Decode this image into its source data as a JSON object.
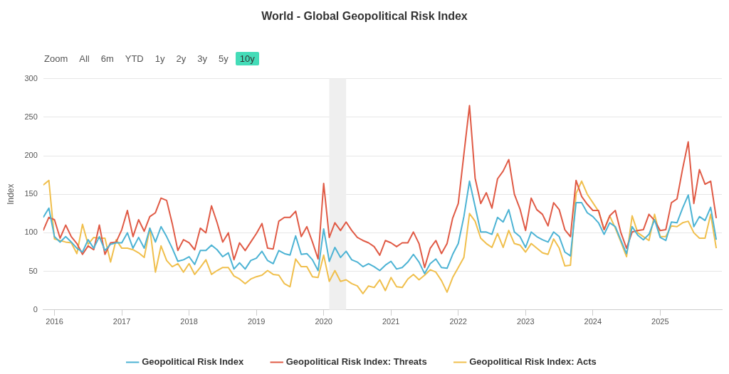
{
  "chart_data": {
    "type": "line",
    "title": "World - Global Geopolitical Risk Index",
    "ylabel": "Index",
    "annotations": [
      "Zoom",
      "All",
      "6m",
      "YTD",
      "1y",
      "2y",
      "3y",
      "5y",
      "10y"
    ],
    "x": [
      "2015-11",
      "2015-12",
      "2016-01",
      "2016-02",
      "2016-03",
      "2016-04",
      "2016-05",
      "2016-06",
      "2016-07",
      "2016-08",
      "2016-09",
      "2016-10",
      "2016-11",
      "2016-12",
      "2017-01",
      "2017-02",
      "2017-03",
      "2017-04",
      "2017-05",
      "2017-06",
      "2017-07",
      "2017-08",
      "2017-09",
      "2017-10",
      "2017-11",
      "2017-12",
      "2018-01",
      "2018-02",
      "2018-03",
      "2018-04",
      "2018-05",
      "2018-06",
      "2018-07",
      "2018-08",
      "2018-09",
      "2018-10",
      "2018-11",
      "2018-12",
      "2019-01",
      "2019-02",
      "2019-03",
      "2019-04",
      "2019-05",
      "2019-06",
      "2019-07",
      "2019-08",
      "2019-09",
      "2019-10",
      "2019-11",
      "2019-12",
      "2020-01",
      "2020-02",
      "2020-03",
      "2020-04",
      "2020-05",
      "2020-06",
      "2020-07",
      "2020-08",
      "2020-09",
      "2020-10",
      "2020-11",
      "2020-12",
      "2021-01",
      "2021-02",
      "2021-03",
      "2021-04",
      "2021-05",
      "2021-06",
      "2021-07",
      "2021-08",
      "2021-09",
      "2021-10",
      "2021-11",
      "2021-12",
      "2022-01",
      "2022-02",
      "2022-03",
      "2022-04",
      "2022-05",
      "2022-06",
      "2022-07",
      "2022-08",
      "2022-09",
      "2022-10",
      "2022-11",
      "2022-12",
      "2023-01",
      "2023-02",
      "2023-03",
      "2023-04",
      "2023-05",
      "2023-06",
      "2023-07",
      "2023-08",
      "2023-09",
      "2023-10",
      "2023-11",
      "2023-12",
      "2024-01",
      "2024-02",
      "2024-03",
      "2024-04",
      "2024-05",
      "2024-06",
      "2024-07",
      "2024-08",
      "2024-09",
      "2024-10",
      "2024-11",
      "2024-12",
      "2025-01",
      "2025-02",
      "2025-03",
      "2025-04",
      "2025-05",
      "2025-06",
      "2025-07",
      "2025-08",
      "2025-09",
      "2025-10",
      "2025-11"
    ],
    "xlim": [
      "2015-11",
      "2025-12"
    ],
    "xticks": [
      {
        "value": "2016",
        "label": "2016"
      },
      {
        "value": "2017",
        "label": "2017"
      },
      {
        "value": "2018",
        "label": "2018"
      },
      {
        "value": "2019",
        "label": "2019"
      },
      {
        "value": "2020",
        "label": "2020"
      },
      {
        "value": "2021",
        "label": "2021"
      },
      {
        "value": "2022",
        "label": "2022"
      },
      {
        "value": "2023",
        "label": "2023"
      },
      {
        "value": "2024",
        "label": "2024"
      },
      {
        "value": "2025",
        "label": "2025"
      }
    ],
    "ylim": [
      0,
      300
    ],
    "yticks": [
      0,
      50,
      100,
      150,
      200,
      250,
      300
    ],
    "grid": "y",
    "legend": "bottom",
    "marker": "none",
    "bands": [
      {
        "axis": "x",
        "from": "2020-02",
        "to": "2020-05",
        "color": "#efefef"
      }
    ],
    "series": [
      {
        "name": "Geopolitical Risk Index",
        "color": "#4cb3d4",
        "values": [
          120,
          132,
          95,
          88,
          95,
          88,
          80,
          75,
          91,
          80,
          95,
          77,
          85,
          87,
          87,
          100,
          80,
          94,
          80,
          106,
          88,
          108,
          95,
          80,
          63,
          65,
          69,
          59,
          77,
          77,
          84,
          78,
          69,
          74,
          53,
          61,
          53,
          64,
          67,
          76,
          64,
          60,
          77,
          73,
          71,
          96,
          72,
          73,
          65,
          51,
          105,
          63,
          81,
          68,
          76,
          65,
          62,
          56,
          60,
          56,
          51,
          58,
          63,
          53,
          55,
          62,
          72,
          62,
          47,
          60,
          66,
          55,
          54,
          72,
          86,
          121,
          167,
          134,
          101,
          101,
          98,
          120,
          114,
          130,
          101,
          95,
          81,
          101,
          95,
          91,
          88,
          101,
          95,
          75,
          70,
          139,
          139,
          126,
          121,
          113,
          98,
          113,
          108,
          90,
          73,
          108,
          97,
          91,
          98,
          117,
          94,
          90,
          114,
          113,
          132,
          149,
          108,
          121,
          116,
          133,
          91
        ]
      },
      {
        "name": "Geopolitical Risk Index: Threats",
        "color": "#e05a45",
        "values": [
          103,
          120,
          117,
          93,
          110,
          95,
          86,
          72,
          83,
          78,
          110,
          72,
          87,
          88,
          104,
          129,
          95,
          117,
          102,
          121,
          126,
          145,
          142,
          112,
          77,
          91,
          87,
          78,
          106,
          100,
          135,
          113,
          88,
          100,
          65,
          87,
          77,
          88,
          99,
          112,
          80,
          79,
          115,
          120,
          120,
          128,
          95,
          108,
          88,
          66,
          164,
          94,
          113,
          103,
          114,
          103,
          94,
          90,
          87,
          82,
          71,
          90,
          87,
          82,
          87,
          87,
          101,
          86,
          55,
          80,
          90,
          73,
          86,
          119,
          138,
          202,
          265,
          171,
          138,
          152,
          132,
          170,
          180,
          195,
          150,
          131,
          103,
          145,
          130,
          124,
          109,
          139,
          130,
          104,
          95,
          168,
          147,
          137,
          129,
          129,
          104,
          122,
          129,
          100,
          80,
          101,
          103,
          104,
          124,
          116,
          103,
          104,
          139,
          144,
          183,
          218,
          138,
          182,
          163,
          167,
          119
        ]
      },
      {
        "name": "Geopolitical Risk Index: Acts",
        "color": "#f0bf4c",
        "values": [
          162,
          168,
          92,
          90,
          88,
          87,
          73,
          111,
          85,
          94,
          93,
          93,
          62,
          91,
          80,
          80,
          78,
          74,
          68,
          106,
          49,
          83,
          64,
          56,
          60,
          49,
          60,
          46,
          55,
          65,
          46,
          51,
          55,
          55,
          44,
          40,
          34,
          40,
          43,
          45,
          51,
          46,
          45,
          34,
          30,
          66,
          56,
          56,
          43,
          42,
          71,
          37,
          51,
          37,
          39,
          34,
          31,
          21,
          31,
          29,
          39,
          25,
          42,
          30,
          29,
          40,
          46,
          39,
          45,
          52,
          49,
          38,
          23,
          42,
          55,
          68,
          125,
          115,
          93,
          86,
          81,
          99,
          81,
          103,
          86,
          84,
          75,
          86,
          80,
          74,
          72,
          92,
          80,
          57,
          58,
          151,
          167,
          150,
          139,
          128,
          104,
          122,
          106,
          88,
          69,
          122,
          100,
          95,
          90,
          124,
          95,
          95,
          109,
          108,
          113,
          115,
          100,
          93,
          93,
          124,
          80
        ]
      }
    ]
  }
}
